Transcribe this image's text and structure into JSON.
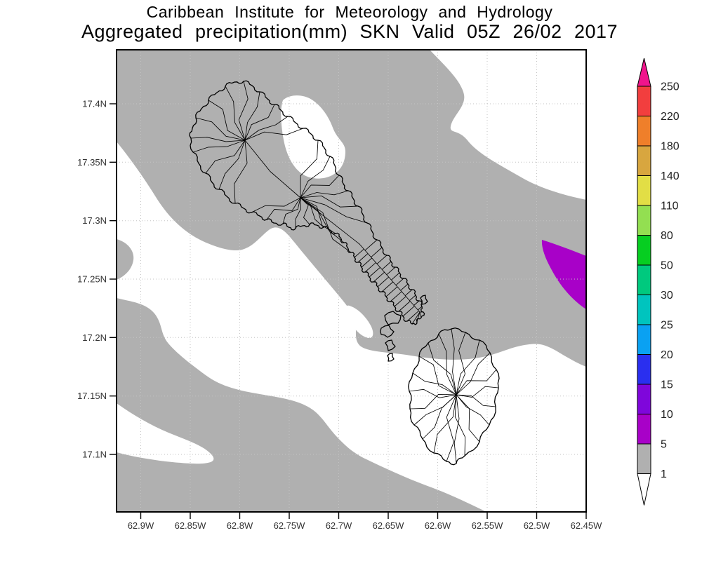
{
  "title": {
    "line1": "Caribbean Institute for Meteorology and Hydrology",
    "line2": "Aggregated precipitation(mm) SKN Valid 05Z 26/02 2017"
  },
  "map": {
    "y_axis_labels": [
      "17.4N",
      "17.35N",
      "17.3N",
      "17.25N",
      "17.2N",
      "17.15N",
      "17.1N"
    ],
    "x_axis_labels": [
      "62.9W",
      "62.85W",
      "62.8W",
      "62.75W",
      "62.7W",
      "62.65W",
      "62.6W",
      "62.55W",
      "62.5W",
      "62.45W"
    ],
    "field_colors": {
      "background_1_5mm": "#b0b0b0",
      "below_1mm": "#ffffff",
      "patch_5_10mm": "#a801c8"
    }
  },
  "colorbar": {
    "tick_labels": [
      "250",
      "220",
      "180",
      "140",
      "110",
      "80",
      "50",
      "30",
      "25",
      "20",
      "15",
      "10",
      "5",
      "1"
    ],
    "colors_top_to_bottom": [
      "#f0148c",
      "#f23e3e",
      "#ef7f2a",
      "#d8a63f",
      "#e2de45",
      "#93df51",
      "#06ce21",
      "#00c97e",
      "#00c4be",
      "#0aa1f2",
      "#2a2fef",
      "#7f06db",
      "#a801c8",
      "#b0b0b0",
      "#ffffff"
    ]
  },
  "chart_data": {
    "type": "heatmap",
    "title": "Aggregated precipitation(mm) SKN Valid 05Z 26/02 2017",
    "subtitle": "Caribbean Institute for Meteorology and Hydrology",
    "x_tick_labels": [
      "62.9W",
      "62.85W",
      "62.8W",
      "62.75W",
      "62.7W",
      "62.65W",
      "62.6W",
      "62.55W",
      "62.5W",
      "62.45W"
    ],
    "y_tick_labels": [
      "17.4N",
      "17.35N",
      "17.3N",
      "17.25N",
      "17.2N",
      "17.15N",
      "17.1N"
    ],
    "colorbar_levels_mm": [
      1,
      5,
      10,
      15,
      20,
      25,
      30,
      50,
      80,
      110,
      140,
      180,
      220,
      250
    ],
    "legend_position": "right",
    "field_summary": [
      {
        "range_mm": "1-5",
        "color": "#b0b0b0",
        "extent": "gray shading over most of the domain including north Nevis"
      },
      {
        "range_mm": "<1",
        "color": "#ffffff",
        "extent": "white bands northwest and southeast of the islands, upper-right region, lower-right corner, patch northeast of St. Kitts"
      },
      {
        "range_mm": "5-10",
        "color": "#a801c8",
        "extent": "small purple patch at the eastern map edge near 17.25N-17.28N"
      }
    ]
  }
}
